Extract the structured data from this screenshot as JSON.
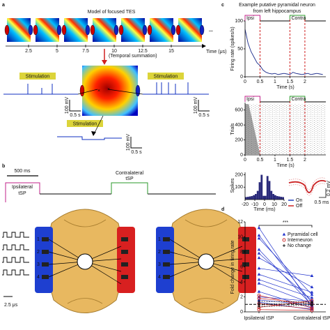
{
  "panel_labels": [
    "a",
    "b",
    "c",
    "d"
  ],
  "panel_a": {
    "title": "Model of focused TES",
    "time_ticks": [
      2.5,
      5,
      7.5,
      10,
      12.5,
      15
    ],
    "ellipsis": "...",
    "time_label": "Time (μs)",
    "arrow_label": "(Temporal summation)",
    "stimulation_labels": [
      "Stimulation",
      "Stimulation",
      "Stimulation"
    ],
    "scale_labels": [
      {
        "voltage": "100 mV",
        "time": "0.5 s"
      },
      {
        "voltage": "100 mV",
        "time": "0.5 s"
      },
      {
        "voltage": "100 mV",
        "time": "0.5 s"
      }
    ]
  },
  "panel_b": {
    "time_scale": "500 ms",
    "ipsilateral_label": [
      "Ipsilateral",
      "tSP"
    ],
    "contralateral_label": [
      "Contralateral",
      "tSP"
    ],
    "electrode_labels": [
      "1",
      "2",
      "3",
      "4"
    ],
    "pulse_scale": "2.5 μs"
  },
  "panel_c": {
    "title_lines": [
      "Example putative pyramidal neuron",
      "from left hippocampus"
    ],
    "ipsi_label": "Ipsi",
    "contra_label": "Contra",
    "rate": {
      "ylabel": "Firing rate (spikes/s)",
      "xlabel": "Time (s)",
      "xlim": [
        0,
        2.7
      ],
      "xticks": [
        0,
        0.5,
        1,
        1.5,
        2
      ],
      "ylim": [
        0,
        100
      ],
      "yticks": [
        0,
        50,
        100
      ],
      "stim_lines": [
        0.5,
        1.5,
        2
      ],
      "x": [
        0,
        0.1,
        0.2,
        0.3,
        0.4,
        0.5,
        0.6,
        0.7,
        0.8,
        0.9,
        1,
        1.1,
        1.2,
        1.3,
        1.4,
        1.5,
        1.6,
        1.7,
        1.8,
        1.9,
        2,
        2.1,
        2.2,
        2.3,
        2.4,
        2.5,
        2.6
      ],
      "values": [
        85,
        60,
        45,
        35,
        25,
        20,
        12,
        8,
        6,
        5,
        6,
        4,
        5,
        6,
        5,
        4,
        8,
        6,
        5,
        4,
        5,
        6,
        4,
        5,
        6,
        5,
        4
      ]
    },
    "raster": {
      "ylabel": "Trials",
      "xlabel": "Time (s)",
      "xlim": [
        0,
        2.7
      ],
      "xticks": [
        0,
        0.5,
        1,
        1.5,
        2
      ],
      "ylim": [
        0,
        700
      ],
      "yticks": [
        0,
        200,
        400,
        600
      ]
    },
    "histogram": {
      "ylabel": "Spikes",
      "xlabel": "Time (ms)",
      "xlim": [
        -20,
        20
      ],
      "xticks": [
        -20,
        -10,
        0,
        10,
        20
      ],
      "ylim": [
        0,
        220
      ],
      "yticks": [
        100,
        200
      ],
      "bins": [
        -20,
        -18,
        -16,
        -14,
        -12,
        -10,
        -8,
        -6,
        -4,
        -2,
        0,
        2,
        4,
        6,
        8,
        10,
        12,
        14,
        16,
        18,
        20
      ],
      "counts": [
        20,
        22,
        25,
        28,
        35,
        45,
        70,
        140,
        200,
        30,
        30,
        190,
        150,
        70,
        45,
        35,
        28,
        25,
        22,
        20
      ]
    },
    "waveform": {
      "legend": [
        {
          "name": "On",
          "color": "#1f3fbf"
        },
        {
          "name": "Off",
          "color": "#cc2222"
        }
      ],
      "voltage_scale": "0.2 mV",
      "time_scale": "0.5 ms"
    }
  },
  "panel_d": {
    "ylabel": "Fold change in firing rate",
    "categories": [
      "Ipsilateral tSP",
      "Contralateral tSP"
    ],
    "ylim": [
      0,
      12
    ],
    "yticks": [
      0,
      2,
      4,
      6,
      8,
      10,
      12
    ],
    "significance": "***",
    "reference_line": 1,
    "series": [
      {
        "name": "Pyramidal cell",
        "color": "#2233cc",
        "pairs": [
          [
            11.2,
            0.7
          ],
          [
            10.2,
            1.2
          ],
          [
            9.8,
            2.3
          ],
          [
            8.3,
            0.9
          ],
          [
            7.8,
            1.5
          ],
          [
            7.2,
            3.3
          ],
          [
            5.8,
            4.8
          ],
          [
            5.0,
            2.6
          ],
          [
            4.3,
            1.9
          ],
          [
            3.8,
            1.1
          ],
          [
            2.7,
            0.5
          ],
          [
            2.0,
            1.4
          ],
          [
            1.6,
            0.9
          ],
          [
            1.3,
            0.3
          ]
        ]
      },
      {
        "name": "Interneuron",
        "color": "#cc2222",
        "pairs": [
          [
            2.2,
            0.6
          ],
          [
            1.8,
            1.1
          ],
          [
            1.1,
            0.4
          ],
          [
            0.6,
            1.5
          ],
          [
            0.3,
            0.2
          ]
        ]
      },
      {
        "name": "No change",
        "color": "#111111",
        "pairs": [
          [
            1.1,
            1.0
          ],
          [
            0.9,
            1.2
          ],
          [
            0.7,
            0.9
          ],
          [
            1.4,
            1.3
          ]
        ]
      }
    ]
  }
}
